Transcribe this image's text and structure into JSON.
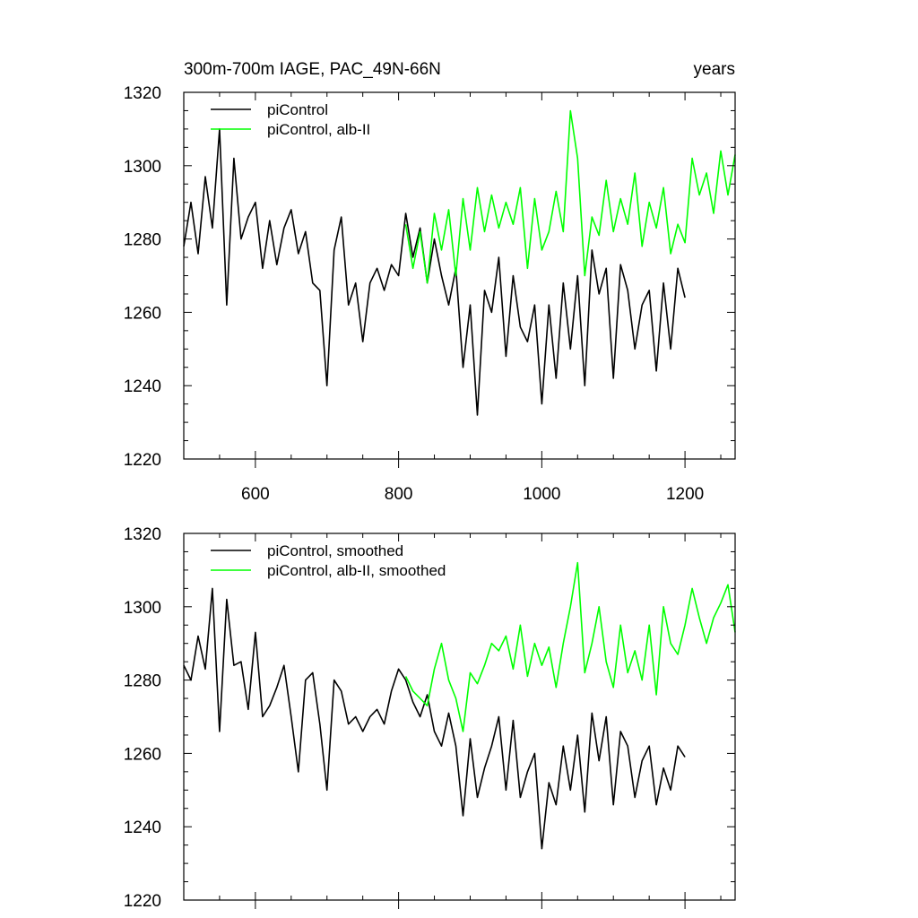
{
  "chart_data": [
    {
      "type": "line",
      "title": "300m-700m IAGE, PAC_49N-66N",
      "title_right": "years",
      "xlim": [
        500,
        1270
      ],
      "ylim": [
        1220,
        1320
      ],
      "x_ticks": [
        600,
        800,
        1000,
        1200
      ],
      "y_ticks": [
        1220,
        1240,
        1260,
        1280,
        1300,
        1320
      ],
      "x_tick_labels_shown": true,
      "grid": false,
      "legend_position": "top-left",
      "series": [
        {
          "name": "piControl",
          "color": "#000000",
          "x": [
            500,
            510,
            520,
            530,
            540,
            550,
            560,
            570,
            580,
            590,
            600,
            610,
            620,
            630,
            640,
            650,
            660,
            670,
            680,
            690,
            700,
            710,
            720,
            730,
            740,
            750,
            760,
            770,
            780,
            790,
            800,
            810,
            820,
            830,
            840,
            850,
            860,
            870,
            880,
            890,
            900,
            910,
            920,
            930,
            940,
            950,
            960,
            970,
            980,
            990,
            1000,
            1010,
            1020,
            1030,
            1040,
            1050,
            1060,
            1070,
            1080,
            1090,
            1100,
            1110,
            1120,
            1130,
            1140,
            1150,
            1160,
            1170,
            1180,
            1190,
            1200
          ],
          "y": [
            1278,
            1290,
            1276,
            1297,
            1283,
            1310,
            1262,
            1302,
            1280,
            1286,
            1290,
            1272,
            1285,
            1273,
            1283,
            1288,
            1276,
            1282,
            1268,
            1266,
            1240,
            1277,
            1286,
            1262,
            1268,
            1252,
            1268,
            1272,
            1266,
            1273,
            1270,
            1287,
            1275,
            1283,
            1268,
            1280,
            1270,
            1262,
            1272,
            1245,
            1262,
            1232,
            1266,
            1260,
            1275,
            1248,
            1270,
            1256,
            1252,
            1262,
            1235,
            1262,
            1242,
            1268,
            1250,
            1270,
            1240,
            1277,
            1265,
            1272,
            1242,
            1273,
            1266,
            1250,
            1262,
            1266,
            1244,
            1268,
            1250,
            1272,
            1264
          ]
        },
        {
          "name": "piControl, alb-II",
          "color": "#00ff00",
          "x": [
            810,
            820,
            830,
            840,
            850,
            860,
            870,
            880,
            890,
            900,
            910,
            920,
            930,
            940,
            950,
            960,
            970,
            980,
            990,
            1000,
            1010,
            1020,
            1030,
            1040,
            1050,
            1060,
            1070,
            1080,
            1090,
            1100,
            1110,
            1120,
            1130,
            1140,
            1150,
            1160,
            1170,
            1180,
            1190,
            1200,
            1210,
            1220,
            1230,
            1240,
            1250,
            1260,
            1270
          ],
          "y": [
            1284,
            1272,
            1282,
            1268,
            1287,
            1277,
            1288,
            1270,
            1291,
            1277,
            1294,
            1282,
            1292,
            1283,
            1290,
            1284,
            1294,
            1272,
            1291,
            1277,
            1282,
            1293,
            1282,
            1315,
            1302,
            1270,
            1286,
            1281,
            1296,
            1282,
            1291,
            1284,
            1298,
            1278,
            1290,
            1283,
            1294,
            1276,
            1284,
            1279,
            1302,
            1292,
            1298,
            1287,
            1304,
            1292,
            1303
          ]
        }
      ]
    },
    {
      "type": "line",
      "xlim": [
        500,
        1270
      ],
      "ylim": [
        1220,
        1320
      ],
      "x_ticks": [
        600,
        800,
        1000,
        1200
      ],
      "y_ticks": [
        1220,
        1240,
        1260,
        1280,
        1300,
        1320
      ],
      "x_tick_labels_shown": false,
      "grid": false,
      "legend_position": "top-left",
      "series": [
        {
          "name": "piControl, smoothed",
          "color": "#000000",
          "x": [
            500,
            510,
            520,
            530,
            540,
            550,
            560,
            570,
            580,
            590,
            600,
            610,
            620,
            630,
            640,
            650,
            660,
            670,
            680,
            690,
            700,
            710,
            720,
            730,
            740,
            750,
            760,
            770,
            780,
            790,
            800,
            810,
            820,
            830,
            840,
            850,
            860,
            870,
            880,
            890,
            900,
            910,
            920,
            930,
            940,
            950,
            960,
            970,
            980,
            990,
            1000,
            1010,
            1020,
            1030,
            1040,
            1050,
            1060,
            1070,
            1080,
            1090,
            1100,
            1110,
            1120,
            1130,
            1140,
            1150,
            1160,
            1170,
            1180,
            1190,
            1200
          ],
          "y": [
            1284,
            1280,
            1292,
            1283,
            1305,
            1266,
            1302,
            1284,
            1285,
            1272,
            1293,
            1270,
            1273,
            1278,
            1284,
            1270,
            1255,
            1280,
            1282,
            1268,
            1250,
            1280,
            1277,
            1268,
            1270,
            1266,
            1270,
            1272,
            1268,
            1277,
            1283,
            1280,
            1274,
            1270,
            1276,
            1266,
            1262,
            1271,
            1262,
            1243,
            1264,
            1248,
            1256,
            1262,
            1270,
            1250,
            1269,
            1248,
            1255,
            1260,
            1234,
            1252,
            1246,
            1262,
            1250,
            1265,
            1244,
            1271,
            1258,
            1270,
            1246,
            1266,
            1262,
            1248,
            1258,
            1262,
            1246,
            1256,
            1250,
            1262,
            1259
          ]
        },
        {
          "name": "piControl, alb-II, smoothed",
          "color": "#00ff00",
          "x": [
            810,
            820,
            830,
            840,
            850,
            860,
            870,
            880,
            890,
            900,
            910,
            920,
            930,
            940,
            950,
            960,
            970,
            980,
            990,
            1000,
            1010,
            1020,
            1030,
            1040,
            1050,
            1060,
            1070,
            1080,
            1090,
            1100,
            1110,
            1120,
            1130,
            1140,
            1150,
            1160,
            1170,
            1180,
            1190,
            1200,
            1210,
            1220,
            1230,
            1240,
            1250,
            1260,
            1270
          ],
          "y": [
            1281,
            1277,
            1275,
            1273,
            1283,
            1290,
            1280,
            1275,
            1266,
            1282,
            1279,
            1284,
            1290,
            1288,
            1292,
            1283,
            1295,
            1281,
            1290,
            1284,
            1289,
            1278,
            1290,
            1300,
            1312,
            1282,
            1290,
            1300,
            1285,
            1278,
            1295,
            1282,
            1288,
            1280,
            1295,
            1276,
            1300,
            1290,
            1287,
            1295,
            1305,
            1297,
            1290,
            1297,
            1301,
            1306,
            1293
          ]
        }
      ]
    }
  ]
}
